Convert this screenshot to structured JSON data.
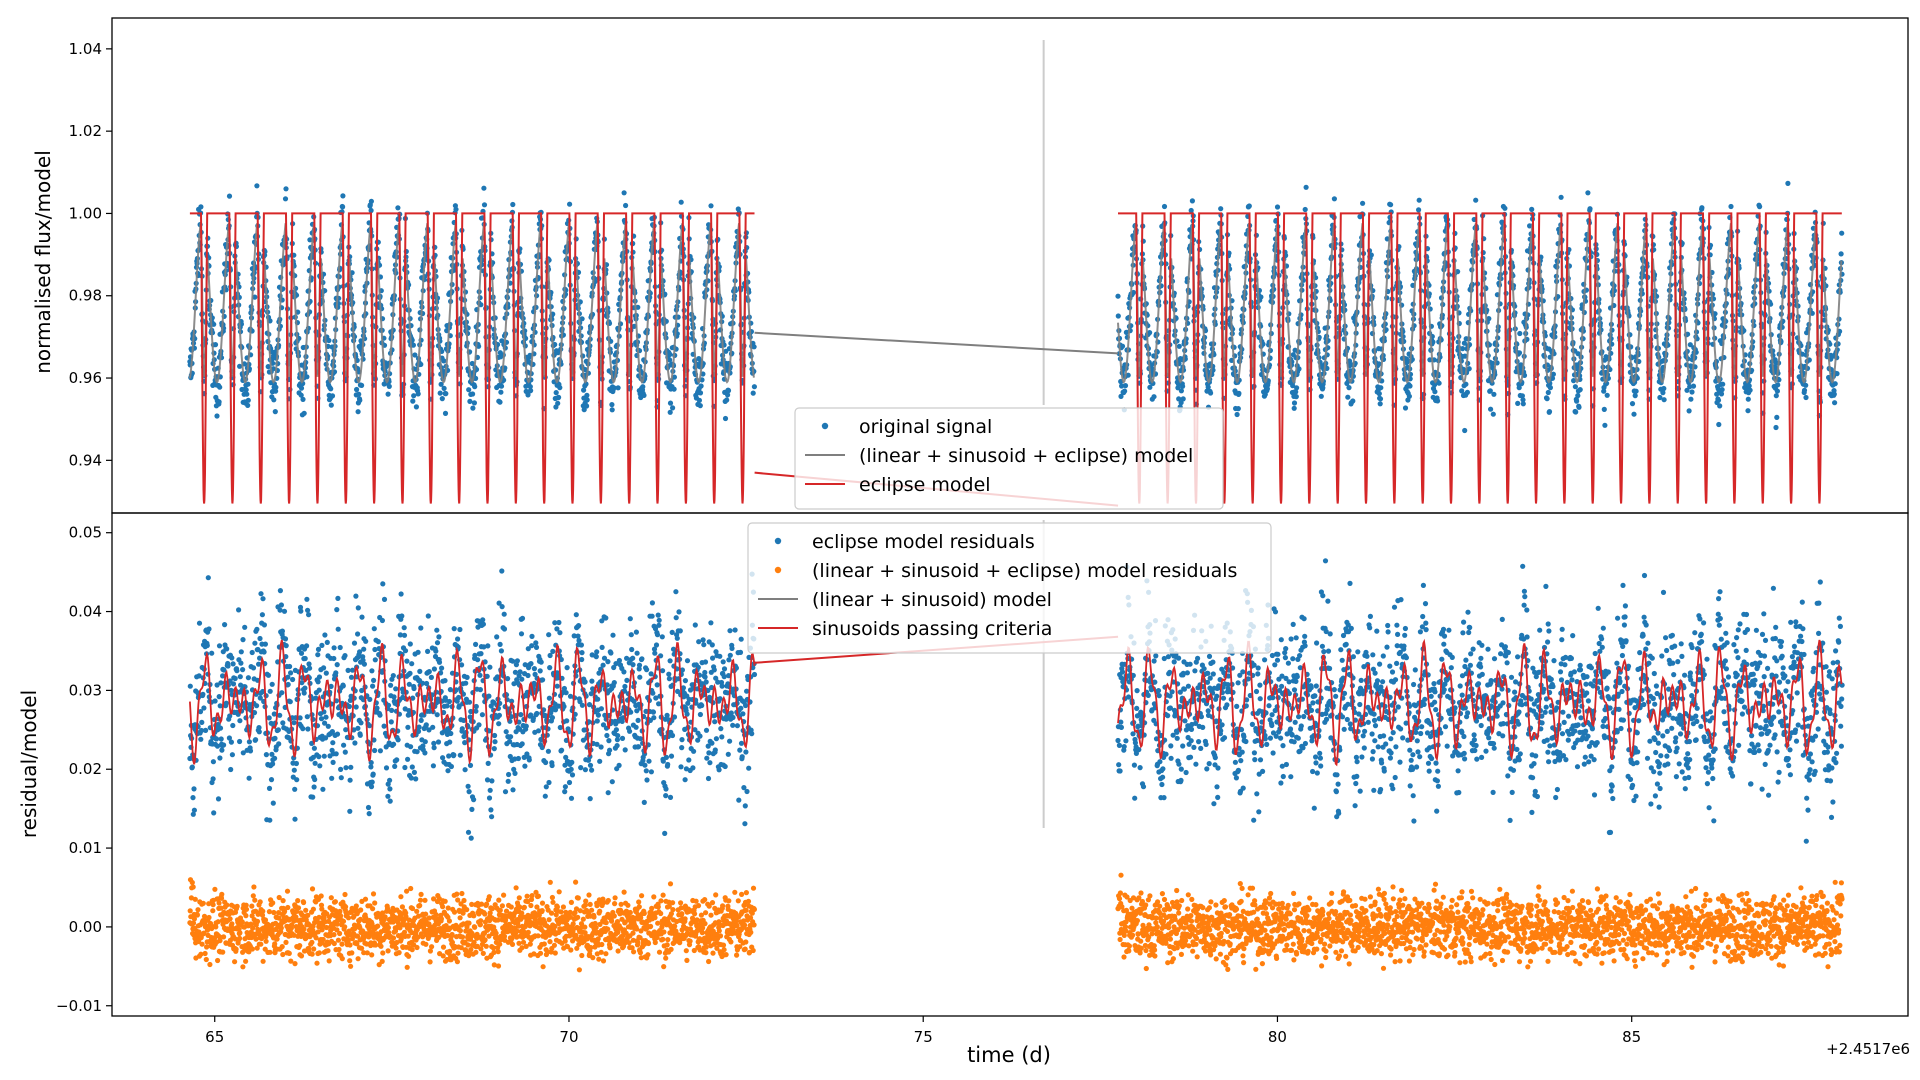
{
  "chart_data": {
    "offset_label": "+2.4517e6",
    "xlabel": "time (d)",
    "x_ticks": [
      65,
      70,
      75,
      80,
      85
    ],
    "xlim": [
      63.55,
      88.9
    ],
    "gap": [
      72.7,
      77.75
    ],
    "vline_x": 76.7,
    "eclipse": {
      "period": 0.4,
      "phase0": 64.85,
      "depth": 0.0705
    },
    "panels": [
      {
        "type": "scatter",
        "ylabel": "normalised flux/model",
        "ylim": [
          0.9272,
          1.0475
        ],
        "y_ticks": [
          0.94,
          0.96,
          0.98,
          1.0,
          1.02,
          1.04
        ],
        "y_tick_labels": [
          "0.94",
          "0.96",
          "0.98",
          "1.00",
          "1.02",
          "1.04"
        ],
        "legend": {
          "placement": "lower-center",
          "entries": [
            {
              "label": "original signal",
              "kind": "dot",
              "color": "#1f77b4"
            },
            {
              "label": "(linear + sinusoid + eclipse) model",
              "kind": "line",
              "color": "#7f7f7f"
            },
            {
              "label": "eclipse model",
              "kind": "line",
              "color": "#d62728"
            }
          ]
        },
        "series": [
          {
            "name": "original signal",
            "style": "points",
            "color": "#1f77b4",
            "baseline": 1.0,
            "amplitude": 0.041,
            "noise": 0.004
          },
          {
            "name": "(linear + sinusoid + eclipse) model",
            "style": "line",
            "color": "#7f7f7f",
            "bridge": [
              0.971,
              0.966
            ]
          },
          {
            "name": "eclipse model",
            "style": "line",
            "color": "#d62728",
            "bridge": [
              0.937,
              0.929
            ]
          }
        ]
      },
      {
        "type": "scatter",
        "ylabel": "residual/model",
        "ylim": [
          -0.0113,
          0.0525
        ],
        "y_ticks": [
          -0.01,
          0.0,
          0.01,
          0.02,
          0.03,
          0.04,
          0.05
        ],
        "y_tick_labels": [
          "−0.01",
          "0.00",
          "0.01",
          "0.02",
          "0.03",
          "0.04",
          "0.05"
        ],
        "legend": {
          "placement": "upper-center",
          "entries": [
            {
              "label": "eclipse model residuals",
              "kind": "dot",
              "color": "#1f77b4"
            },
            {
              "label": "(linear + sinusoid + eclipse) model residuals",
              "kind": "dot",
              "color": "#ff7f0e"
            },
            {
              "label": "(linear + sinusoid) model",
              "kind": "line",
              "color": "#7f7f7f"
            },
            {
              "label": "sinusoids passing criteria",
              "kind": "line",
              "color": "#d62728"
            }
          ]
        },
        "series": [
          {
            "name": "eclipse model residuals",
            "style": "points",
            "color": "#1f77b4",
            "mean": 0.0285,
            "spread": 0.0045
          },
          {
            "name": "(linear + sinusoid + eclipse) model residuals",
            "style": "points",
            "color": "#ff7f0e",
            "mean": 0.0,
            "spread": 0.002
          },
          {
            "name": "(linear + sinusoid) model",
            "style": "line",
            "color": "#7f7f7f"
          },
          {
            "name": "sinusoids passing criteria",
            "style": "line",
            "color": "#d62728",
            "mean": 0.0285,
            "amplitude": 0.006,
            "bridge": [
              0.0335,
              0.0368
            ]
          }
        ]
      }
    ]
  }
}
